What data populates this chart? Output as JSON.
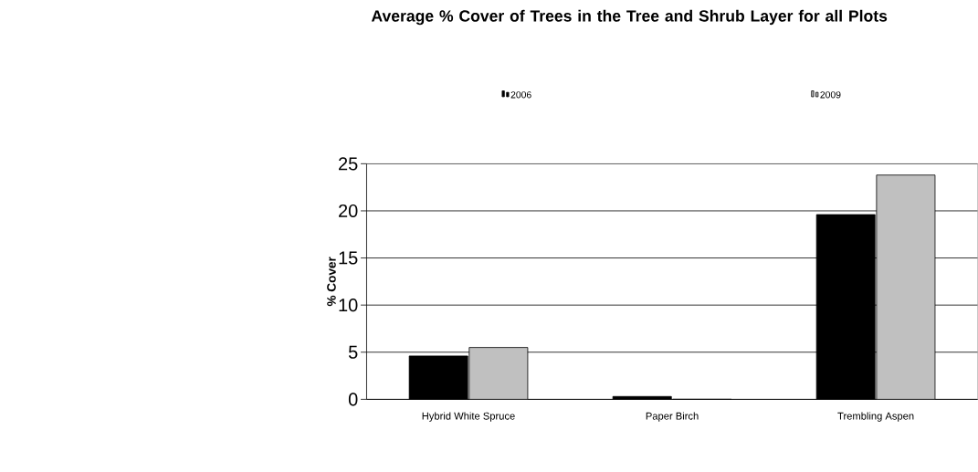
{
  "chart_data": {
    "type": "bar",
    "title": "Average % Cover of Trees in the Tree and Shrub Layer for all Plots",
    "ylabel": "% Cover",
    "categories": [
      "Hybrid White Spruce",
      "Paper Birch",
      "Trembling Aspen"
    ],
    "series": [
      {
        "name": "2006",
        "color": "#000000",
        "values": [
          4.6,
          0.3,
          19.6
        ]
      },
      {
        "name": "2009",
        "color": "#c0c0c0",
        "values": [
          5.5,
          0,
          23.8
        ]
      }
    ],
    "ylim": [
      0,
      25
    ],
    "yticks": [
      0,
      5,
      10,
      15,
      20,
      25
    ],
    "grid": "y",
    "legend": "top"
  }
}
